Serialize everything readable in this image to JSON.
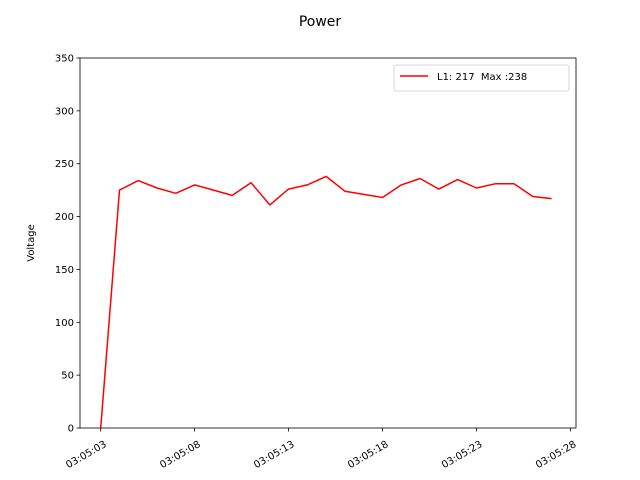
{
  "chart_data": {
    "type": "line",
    "title": "Power",
    "xlabel": "",
    "ylabel": "Voltage",
    "ylim": [
      0,
      350
    ],
    "yticks": [
      0,
      50,
      100,
      150,
      200,
      250,
      300,
      350
    ],
    "x_seconds_range": [
      -1.1,
      25.3
    ],
    "x_start_time": "03:05:03",
    "xticks": [
      {
        "label": "03:05:03",
        "s": 0
      },
      {
        "label": "03:05:08",
        "s": 5
      },
      {
        "label": "03:05:13",
        "s": 10
      },
      {
        "label": "03:05:18",
        "s": 15
      },
      {
        "label": "03:05:23",
        "s": 20
      },
      {
        "label": "03:05:28",
        "s": 25
      }
    ],
    "series": [
      {
        "name": "L1: 217  Max :238",
        "color": "#ff0000",
        "x": [
          0,
          1,
          2,
          3,
          4,
          5,
          6,
          7,
          8,
          9,
          10,
          11,
          12,
          13,
          14,
          15,
          16,
          17,
          18,
          19,
          20,
          21,
          22,
          23,
          24
        ],
        "values": [
          0,
          225,
          234,
          227,
          222,
          230,
          225,
          220,
          232,
          211,
          226,
          230,
          238,
          224,
          221,
          218,
          230,
          236,
          226,
          235,
          227,
          231,
          231,
          219,
          217
        ]
      }
    ],
    "legend_position": "upper right",
    "grid": false
  }
}
